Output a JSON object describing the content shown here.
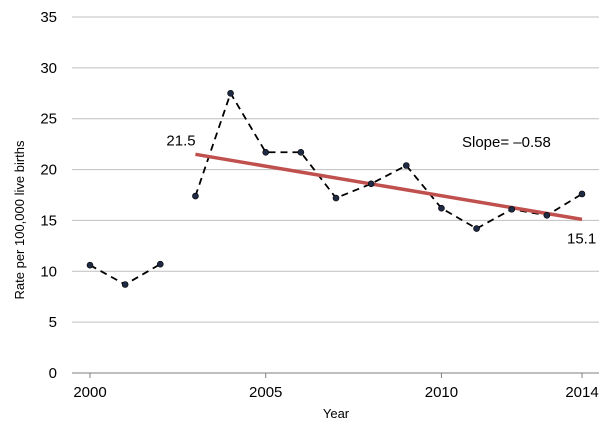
{
  "chart_data": {
    "type": "line",
    "title": "",
    "xlabel": "Year",
    "ylabel": "Rate per 100,000 live births",
    "xlim": [
      2000,
      2014
    ],
    "ylim": [
      0,
      35
    ],
    "x_ticks": [
      "2000",
      "2005",
      "2010",
      "2014"
    ],
    "y_ticks": [
      "0",
      "5",
      "10",
      "15",
      "20",
      "25",
      "30",
      "35"
    ],
    "grid": true,
    "legend": "none",
    "series": [
      {
        "style": "dashed-markers",
        "color": "#000000",
        "segments": [
          [
            [
              2000,
              10.6
            ],
            [
              2001,
              8.7
            ],
            [
              2002,
              10.7
            ]
          ],
          [
            [
              2003,
              17.4
            ],
            [
              2004,
              27.5
            ],
            [
              2005,
              21.7
            ],
            [
              2006,
              21.7
            ],
            [
              2007,
              17.2
            ],
            [
              2008,
              18.6
            ],
            [
              2009,
              20.4
            ],
            [
              2010,
              16.2
            ],
            [
              2011,
              14.2
            ],
            [
              2012,
              16.1
            ],
            [
              2013,
              15.5
            ],
            [
              2014,
              17.6
            ]
          ]
        ]
      },
      {
        "style": "trend",
        "color": "#c0504d",
        "points": [
          [
            2003,
            21.5
          ],
          [
            2014,
            15.1
          ]
        ]
      }
    ],
    "annotations": [
      {
        "text": "21.5",
        "x": 2003,
        "y": 21.5
      },
      {
        "text": "15.1",
        "x": 2014,
        "y": 15.1
      },
      {
        "text": "Slope= –0.58"
      }
    ]
  }
}
